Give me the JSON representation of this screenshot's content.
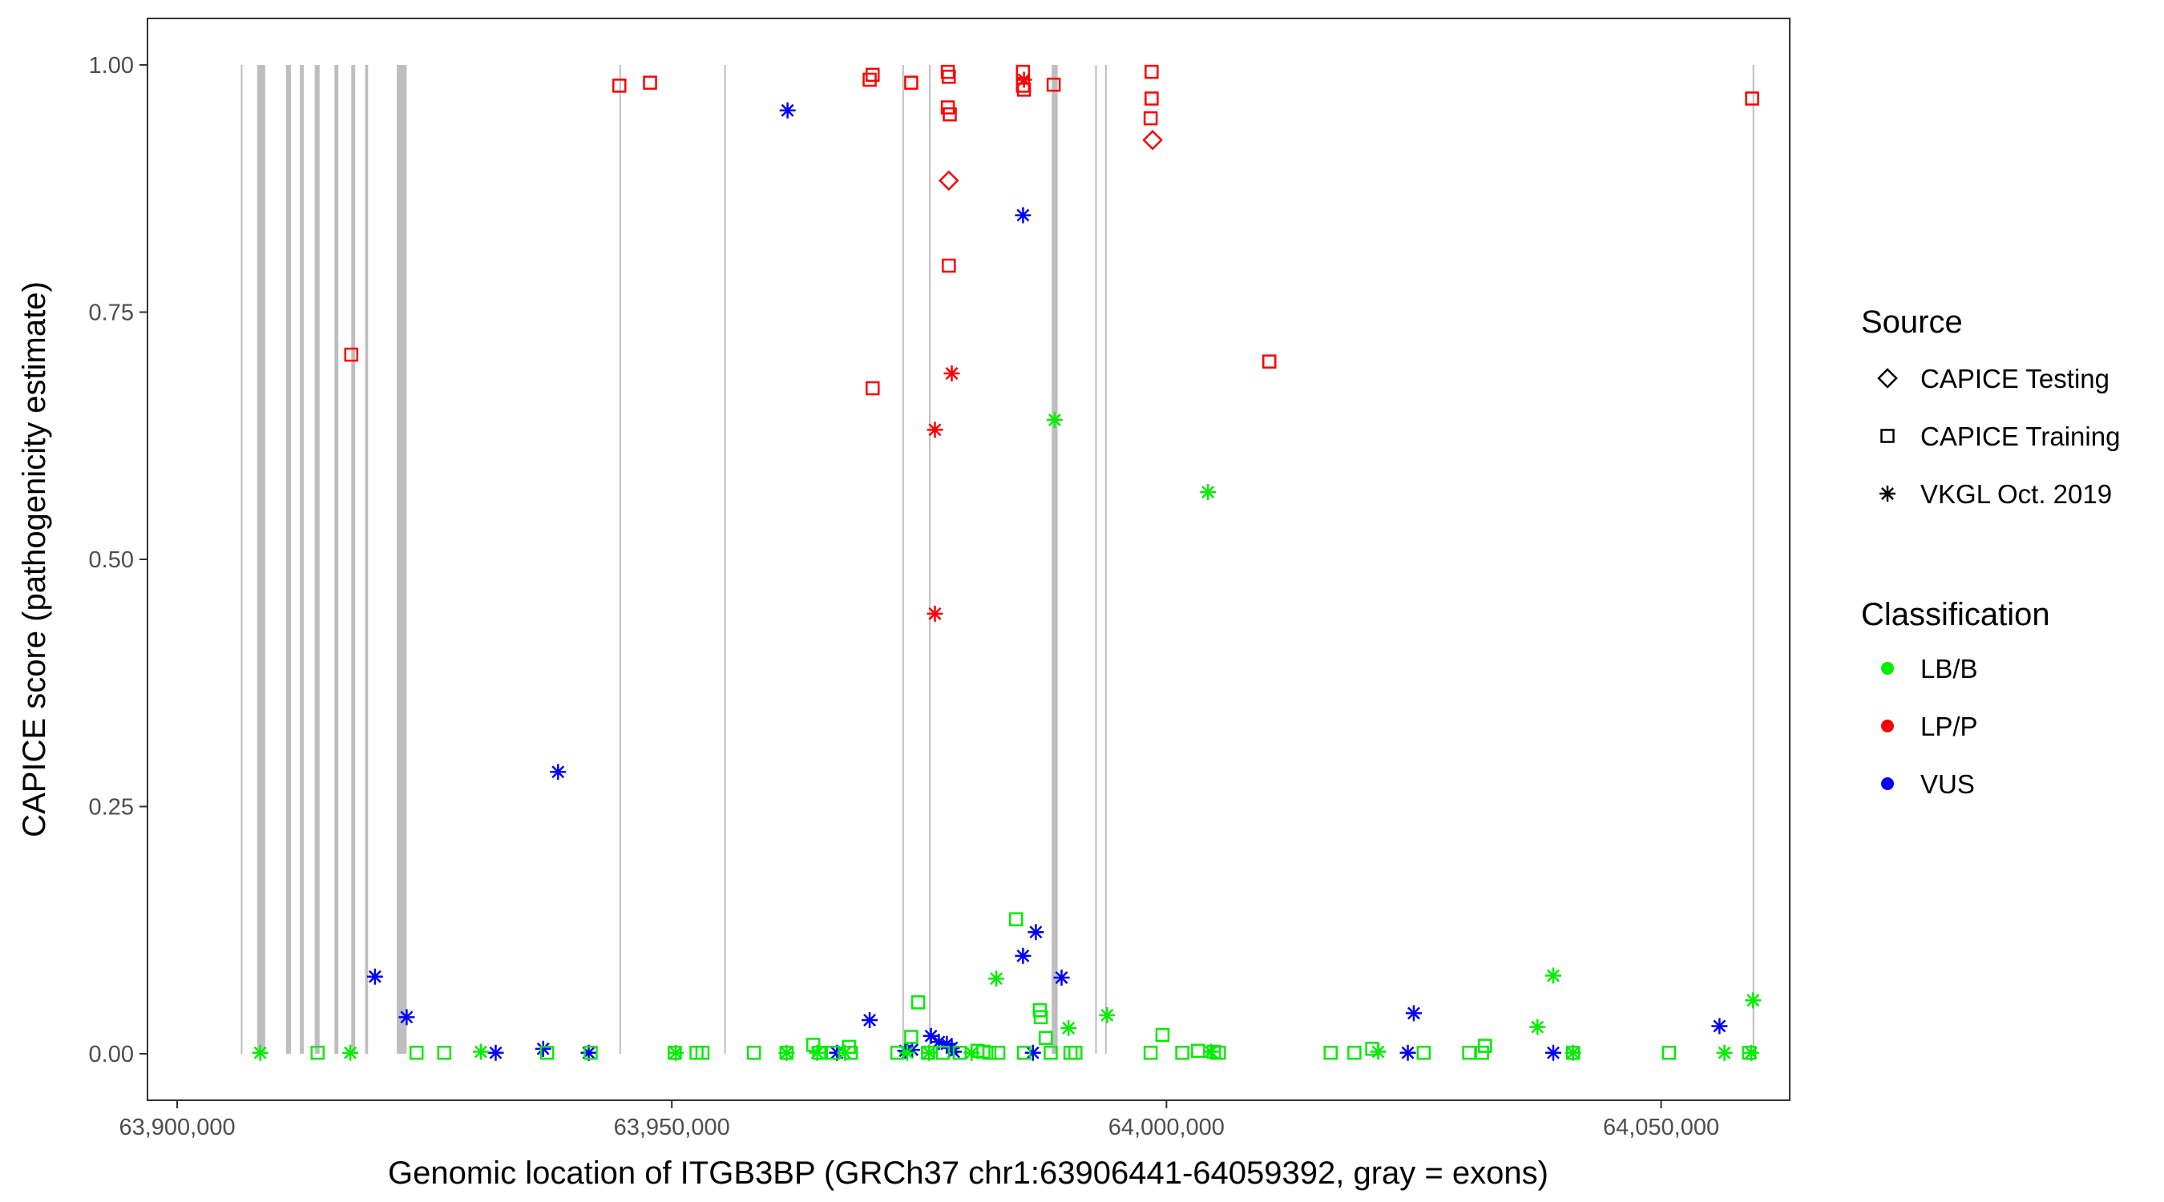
{
  "chart_data": {
    "type": "scatter",
    "title": "",
    "xlabel": "Genomic location of ITGB3BP (GRCh37 chr1:63906441-64059392, gray = exons)",
    "ylabel": "CAPICE score (pathogenicity estimate)",
    "xlim": [
      63897000,
      64063000
    ],
    "ylim": [
      -0.047,
      1.047
    ],
    "x_ticks": [
      63900000,
      63950000,
      64000000,
      64050000
    ],
    "x_tick_labels": [
      "63,900,000",
      "63,950,000",
      "64,000,000",
      "64,050,000"
    ],
    "y_ticks": [
      0,
      0.25,
      0.5,
      0.75,
      1.0
    ],
    "y_tick_labels": [
      "0.00",
      "0.25",
      "0.50",
      "0.75",
      "1.00"
    ],
    "grid": false,
    "exon_color": "#bebebe",
    "exons": [
      [
        63906441,
        63906600
      ],
      [
        63908100,
        63908900
      ],
      [
        63911000,
        63911500
      ],
      [
        63912400,
        63912800
      ],
      [
        63913900,
        63914400
      ],
      [
        63915900,
        63916300
      ],
      [
        63917600,
        63918000
      ],
      [
        63919000,
        63919300
      ],
      [
        63922200,
        63923200
      ],
      [
        63944700,
        63944800
      ],
      [
        63955300,
        63955450
      ],
      [
        63973300,
        63973400
      ],
      [
        63976000,
        63976100
      ],
      [
        63988400,
        63989000
      ],
      [
        63992800,
        63992950
      ],
      [
        63993800,
        63993950
      ],
      [
        64059250,
        64059392
      ]
    ],
    "legend_placement": "right",
    "legend": {
      "source_title": "Source",
      "source_items": [
        {
          "label": "CAPICE Testing",
          "shape": "diamond"
        },
        {
          "label": "CAPICE Training",
          "shape": "square"
        },
        {
          "label": "VKGL Oct. 2019",
          "shape": "asterisk"
        }
      ],
      "class_title": "Classification",
      "class_items": [
        {
          "label": "LB/B",
          "color": "#00ee00"
        },
        {
          "label": "LP/P",
          "color": "#ff0000"
        },
        {
          "label": "VUS",
          "color": "#0000ff"
        }
      ]
    },
    "colors": {
      "LB/B": "#00ee00",
      "LP/P": "#ff0000",
      "VUS": "#0000ff"
    },
    "series": [
      {
        "classification": "LP/P",
        "source": "CAPICE Training",
        "shape": "square",
        "points": [
          [
            63917600,
            0.707
          ],
          [
            63944700,
            0.979
          ],
          [
            63947800,
            0.982
          ],
          [
            63970000,
            0.985
          ],
          [
            63970300,
            0.99
          ],
          [
            63974200,
            0.982
          ],
          [
            63977900,
            0.993
          ],
          [
            63978000,
            0.988
          ],
          [
            63977900,
            0.957
          ],
          [
            63978100,
            0.95
          ],
          [
            63978000,
            0.797
          ],
          [
            63970300,
            0.673
          ],
          [
            63985500,
            0.993
          ],
          [
            63985500,
            0.979
          ],
          [
            63985600,
            0.975
          ],
          [
            63988600,
            0.98
          ],
          [
            63998500,
            0.993
          ],
          [
            63998500,
            0.966
          ],
          [
            63998400,
            0.946
          ],
          [
            64010400,
            0.7
          ],
          [
            64059200,
            0.966
          ]
        ]
      },
      {
        "classification": "LP/P",
        "source": "CAPICE Testing",
        "shape": "diamond",
        "points": [
          [
            63978000,
            0.883
          ],
          [
            63998600,
            0.924
          ]
        ]
      },
      {
        "classification": "LP/P",
        "source": "VKGL Oct. 2019",
        "shape": "asterisk",
        "points": [
          [
            63985600,
            0.985
          ],
          [
            63978300,
            0.688
          ],
          [
            63976600,
            0.631
          ],
          [
            63976600,
            0.445
          ]
        ]
      },
      {
        "classification": "VUS",
        "source": "VKGL Oct. 2019",
        "shape": "asterisk",
        "points": [
          [
            63961700,
            0.954
          ],
          [
            63985500,
            0.848
          ],
          [
            63938500,
            0.285
          ],
          [
            63920000,
            0.078
          ],
          [
            63923200,
            0.037
          ],
          [
            63932200,
            0.001
          ],
          [
            63937000,
            0.005
          ],
          [
            63941600,
            0.001
          ],
          [
            63966700,
            0.001
          ],
          [
            63970000,
            0.034
          ],
          [
            63973600,
            0.003
          ],
          [
            63974300,
            0.004
          ],
          [
            63976200,
            0.018
          ],
          [
            63977000,
            0.012
          ],
          [
            63977800,
            0.01
          ],
          [
            63978300,
            0.006
          ],
          [
            63978500,
            0.002
          ],
          [
            63985500,
            0.099
          ],
          [
            63986800,
            0.123
          ],
          [
            63989400,
            0.077
          ],
          [
            63986500,
            0.001
          ],
          [
            64024400,
            0.001
          ],
          [
            64025000,
            0.041
          ],
          [
            64039100,
            0.001
          ],
          [
            64055900,
            0.028
          ]
        ]
      },
      {
        "classification": "LB/B",
        "source": "VKGL Oct. 2019",
        "shape": "asterisk",
        "points": [
          [
            63908400,
            0.001
          ],
          [
            63917500,
            0.001
          ],
          [
            63930700,
            0.002
          ],
          [
            63950400,
            0.001
          ],
          [
            63961600,
            0.001
          ],
          [
            63964700,
            0.001
          ],
          [
            63967500,
            0.001
          ],
          [
            63973800,
            0.001
          ],
          [
            63976000,
            0.001
          ],
          [
            63980300,
            0.001
          ],
          [
            63982800,
            0.076
          ],
          [
            63988700,
            0.641
          ],
          [
            63990100,
            0.026
          ],
          [
            63994000,
            0.039
          ],
          [
            64004200,
            0.568
          ],
          [
            64004500,
            0.002
          ],
          [
            64021400,
            0.002
          ],
          [
            64037500,
            0.027
          ],
          [
            64039100,
            0.079
          ],
          [
            64041100,
            0.001
          ],
          [
            64056400,
            0.001
          ],
          [
            64059300,
            0.054
          ],
          [
            64059100,
            0.001
          ]
        ]
      },
      {
        "classification": "LB/B",
        "source": "CAPICE Training",
        "shape": "square",
        "points": [
          [
            63914200,
            0.001
          ],
          [
            63924200,
            0.001
          ],
          [
            63927000,
            0.001
          ],
          [
            63937400,
            0.001
          ],
          [
            63941800,
            0.001
          ],
          [
            63950300,
            0.001
          ],
          [
            63952500,
            0.001
          ],
          [
            63953100,
            0.001
          ],
          [
            63958300,
            0.001
          ],
          [
            63961600,
            0.001
          ],
          [
            63964300,
            0.009
          ],
          [
            63964900,
            0.001
          ],
          [
            63966300,
            0.001
          ],
          [
            63967900,
            0.007
          ],
          [
            63968100,
            0.001
          ],
          [
            63972800,
            0.001
          ],
          [
            63974200,
            0.017
          ],
          [
            63974900,
            0.052
          ],
          [
            63975900,
            0.001
          ],
          [
            63977400,
            0.001
          ],
          [
            63979100,
            0.001
          ],
          [
            63980900,
            0.003
          ],
          [
            63981500,
            0.002
          ],
          [
            63982100,
            0.001
          ],
          [
            63983000,
            0.001
          ],
          [
            63984800,
            0.136
          ],
          [
            63985600,
            0.001
          ],
          [
            63987200,
            0.044
          ],
          [
            63987300,
            0.037
          ],
          [
            63987800,
            0.016
          ],
          [
            63988300,
            0.001
          ],
          [
            63990300,
            0.001
          ],
          [
            63990800,
            0.001
          ],
          [
            63998400,
            0.001
          ],
          [
            63999600,
            0.019
          ],
          [
            64001600,
            0.001
          ],
          [
            64003200,
            0.003
          ],
          [
            64004800,
            0.002
          ],
          [
            64005300,
            0.001
          ],
          [
            64016600,
            0.001
          ],
          [
            64019000,
            0.001
          ],
          [
            64020800,
            0.005
          ],
          [
            64026000,
            0.001
          ],
          [
            64030600,
            0.001
          ],
          [
            64031900,
            0.001
          ],
          [
            64032200,
            0.008
          ],
          [
            64041100,
            0.001
          ],
          [
            64050800,
            0.001
          ],
          [
            64058900,
            0.001
          ]
        ]
      }
    ]
  }
}
